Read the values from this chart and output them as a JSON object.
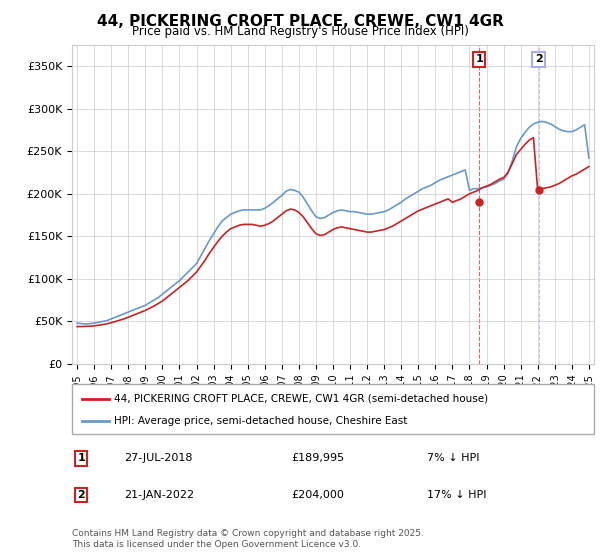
{
  "title": "44, PICKERING CROFT PLACE, CREWE, CW1 4GR",
  "subtitle": "Price paid vs. HM Land Registry's House Price Index (HPI)",
  "legend_line1": "44, PICKERING CROFT PLACE, CREWE, CW1 4GR (semi-detached house)",
  "legend_line2": "HPI: Average price, semi-detached house, Cheshire East",
  "footer": "Contains HM Land Registry data © Crown copyright and database right 2025.\nThis data is licensed under the Open Government Licence v3.0.",
  "annotation1": {
    "label": "1",
    "date": "27-JUL-2018",
    "price": "£189,995",
    "note": "7% ↓ HPI"
  },
  "annotation2": {
    "label": "2",
    "date": "21-JAN-2022",
    "price": "£204,000",
    "note": "17% ↓ HPI"
  },
  "hpi_color": "#6699cc",
  "price_color": "#cc2222",
  "annotation_color": "#cc2222",
  "background_color": "#ffffff",
  "grid_color": "#cccccc",
  "ylim": [
    0,
    375000
  ],
  "yticks": [
    0,
    50000,
    100000,
    150000,
    200000,
    250000,
    300000,
    350000
  ],
  "ytick_labels": [
    "£0",
    "£50K",
    "£100K",
    "£150K",
    "£200K",
    "£250K",
    "£300K",
    "£350K"
  ],
  "x_start_year": 1995,
  "x_end_year": 2025,
  "xtick_years": [
    1995,
    1996,
    1997,
    1998,
    1999,
    2000,
    2001,
    2002,
    2003,
    2004,
    2005,
    2006,
    2007,
    2008,
    2009,
    2010,
    2011,
    2012,
    2013,
    2014,
    2015,
    2016,
    2017,
    2018,
    2019,
    2020,
    2021,
    2022,
    2023,
    2024,
    2025
  ],
  "sale1_x": 2018.57,
  "sale1_y": 189995,
  "sale2_x": 2022.05,
  "sale2_y": 204000,
  "hpi_x": [
    1995.0,
    1995.25,
    1995.5,
    1995.75,
    1996.0,
    1996.25,
    1996.5,
    1996.75,
    1997.0,
    1997.25,
    1997.5,
    1997.75,
    1998.0,
    1998.25,
    1998.5,
    1998.75,
    1999.0,
    1999.25,
    1999.5,
    1999.75,
    2000.0,
    2000.25,
    2000.5,
    2000.75,
    2001.0,
    2001.25,
    2001.5,
    2001.75,
    2002.0,
    2002.25,
    2002.5,
    2002.75,
    2003.0,
    2003.25,
    2003.5,
    2003.75,
    2004.0,
    2004.25,
    2004.5,
    2004.75,
    2005.0,
    2005.25,
    2005.5,
    2005.75,
    2006.0,
    2006.25,
    2006.5,
    2006.75,
    2007.0,
    2007.25,
    2007.5,
    2007.75,
    2008.0,
    2008.25,
    2008.5,
    2008.75,
    2009.0,
    2009.25,
    2009.5,
    2009.75,
    2010.0,
    2010.25,
    2010.5,
    2010.75,
    2011.0,
    2011.25,
    2011.5,
    2011.75,
    2012.0,
    2012.25,
    2012.5,
    2012.75,
    2013.0,
    2013.25,
    2013.5,
    2013.75,
    2014.0,
    2014.25,
    2014.5,
    2014.75,
    2015.0,
    2015.25,
    2015.5,
    2015.75,
    2016.0,
    2016.25,
    2016.5,
    2016.75,
    2017.0,
    2017.25,
    2017.5,
    2017.75,
    2018.0,
    2018.25,
    2018.5,
    2018.75,
    2019.0,
    2019.25,
    2019.5,
    2019.75,
    2020.0,
    2020.25,
    2020.5,
    2020.75,
    2021.0,
    2021.25,
    2021.5,
    2021.75,
    2022.0,
    2022.25,
    2022.5,
    2022.75,
    2023.0,
    2023.25,
    2023.5,
    2023.75,
    2024.0,
    2024.25,
    2024.5,
    2024.75,
    2025.0
  ],
  "hpi_y": [
    48000,
    47500,
    47000,
    47500,
    48000,
    49000,
    50000,
    51000,
    53000,
    55000,
    57000,
    59000,
    61000,
    63000,
    65000,
    67000,
    69000,
    72000,
    75000,
    78000,
    82000,
    86000,
    90000,
    94000,
    98000,
    103000,
    108000,
    113000,
    118000,
    127000,
    136000,
    145000,
    153000,
    161000,
    168000,
    172000,
    176000,
    178000,
    180000,
    181000,
    181000,
    181000,
    181000,
    181000,
    183000,
    186000,
    190000,
    194000,
    198000,
    203000,
    205000,
    204000,
    202000,
    196000,
    188000,
    180000,
    173000,
    171000,
    172000,
    175000,
    178000,
    180000,
    181000,
    180000,
    179000,
    179000,
    178000,
    177000,
    176000,
    176000,
    177000,
    178000,
    179000,
    181000,
    184000,
    187000,
    190000,
    194000,
    197000,
    200000,
    203000,
    206000,
    208000,
    210000,
    213000,
    216000,
    218000,
    220000,
    222000,
    224000,
    226000,
    228000,
    204000,
    206000,
    206000,
    207000,
    208000,
    210000,
    212000,
    215000,
    217000,
    224000,
    238000,
    255000,
    265000,
    272000,
    278000,
    282000,
    284000,
    285000,
    284000,
    282000,
    279000,
    276000,
    274000,
    273000,
    273000,
    275000,
    278000,
    281000,
    242000
  ],
  "price_x": [
    1995.0,
    1995.25,
    1995.5,
    1995.75,
    1996.0,
    1996.25,
    1996.5,
    1996.75,
    1997.0,
    1997.25,
    1997.5,
    1997.75,
    1998.0,
    1998.25,
    1998.5,
    1998.75,
    1999.0,
    1999.25,
    1999.5,
    1999.75,
    2000.0,
    2000.25,
    2000.5,
    2000.75,
    2001.0,
    2001.25,
    2001.5,
    2001.75,
    2002.0,
    2002.25,
    2002.5,
    2002.75,
    2003.0,
    2003.25,
    2003.5,
    2003.75,
    2004.0,
    2004.25,
    2004.5,
    2004.75,
    2005.0,
    2005.25,
    2005.5,
    2005.75,
    2006.0,
    2006.25,
    2006.5,
    2006.75,
    2007.0,
    2007.25,
    2007.5,
    2007.75,
    2008.0,
    2008.25,
    2008.5,
    2008.75,
    2009.0,
    2009.25,
    2009.5,
    2009.75,
    2010.0,
    2010.25,
    2010.5,
    2010.75,
    2011.0,
    2011.25,
    2011.5,
    2011.75,
    2012.0,
    2012.25,
    2012.5,
    2012.75,
    2013.0,
    2013.25,
    2013.5,
    2013.75,
    2014.0,
    2014.25,
    2014.5,
    2014.75,
    2015.0,
    2015.25,
    2015.5,
    2015.75,
    2016.0,
    2016.25,
    2016.5,
    2016.75,
    2017.0,
    2017.25,
    2017.5,
    2017.75,
    2018.0,
    2018.25,
    2018.5,
    2018.75,
    2019.0,
    2019.25,
    2019.5,
    2019.75,
    2020.0,
    2020.25,
    2020.5,
    2020.75,
    2021.0,
    2021.25,
    2021.5,
    2021.75,
    2022.0,
    2022.25,
    2022.5,
    2022.75,
    2023.0,
    2023.25,
    2023.5,
    2023.75,
    2024.0,
    2024.25,
    2024.5,
    2024.75,
    2025.0
  ],
  "price_y": [
    44000,
    44000,
    44200,
    44400,
    44800,
    45500,
    46300,
    47200,
    48500,
    50000,
    51500,
    53000,
    55000,
    57000,
    59000,
    61000,
    63000,
    65500,
    68000,
    71000,
    74000,
    78000,
    82000,
    86000,
    90000,
    94000,
    98000,
    103000,
    108000,
    115000,
    122000,
    130000,
    137000,
    144000,
    150000,
    155000,
    159000,
    161000,
    163000,
    164000,
    164000,
    164000,
    163000,
    162000,
    163000,
    165000,
    168000,
    172000,
    176000,
    180000,
    182000,
    181000,
    178000,
    173000,
    166000,
    159000,
    153000,
    151000,
    152000,
    155000,
    158000,
    160000,
    161000,
    160000,
    159000,
    158000,
    157000,
    156000,
    155000,
    155000,
    156000,
    157000,
    158000,
    160000,
    162000,
    165000,
    168000,
    171000,
    174000,
    177000,
    180000,
    182000,
    184000,
    186000,
    188000,
    190000,
    192000,
    194000,
    189995,
    192000,
    194000,
    197000,
    200000,
    202000,
    204000,
    207000,
    209000,
    211000,
    214000,
    217000,
    219000,
    225000,
    235000,
    246000,
    252000,
    258000,
    263000,
    266000,
    204000,
    206000,
    207000,
    208000,
    210000,
    212000,
    215000,
    218000,
    221000,
    223000,
    226000,
    229000,
    232000
  ]
}
